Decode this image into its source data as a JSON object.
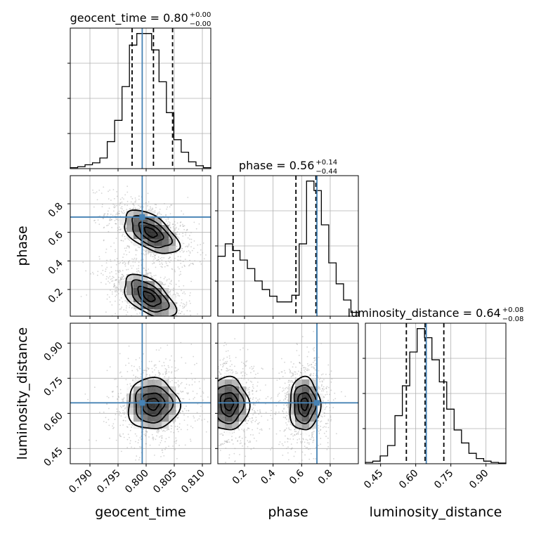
{
  "chart_data": {
    "type": "corner",
    "parameters": [
      {
        "name": "geocent_time",
        "xlabel": "geocent_time",
        "range": [
          0.7865,
          0.8115
        ],
        "ticks": [
          0.79,
          0.795,
          0.8,
          0.805,
          0.81
        ],
        "tick_labels": [
          "0.790",
          "0.795",
          "0.800",
          "0.805",
          "0.810"
        ],
        "title_main": "geocent_time = 0.80",
        "title_plus": "+0.00",
        "title_minus": "−0.00",
        "median": 0.8013,
        "q_lower": 0.7975,
        "q_upper": 0.8047,
        "truth": 0.7993,
        "hist": [
          1,
          2,
          4,
          6,
          11,
          28,
          50,
          85,
          128,
          140,
          140,
          123,
          90,
          58,
          30,
          17,
          7,
          3,
          1
        ]
      },
      {
        "name": "phase",
        "xlabel": "phase",
        "ylabel": "phase",
        "range": [
          0.013,
          0.997
        ],
        "ticks": [
          0.2,
          0.4,
          0.6,
          0.8
        ],
        "tick_labels": [
          "0.2",
          "0.4",
          "0.6",
          "0.8"
        ],
        "title_main": "phase = 0.56",
        "title_plus": "+0.14",
        "title_minus": "−0.44",
        "median": 0.56,
        "q_lower": 0.12,
        "q_upper": 0.7,
        "truth": 0.707,
        "hist": [
          63,
          76,
          69,
          59,
          50,
          37,
          28,
          21,
          15,
          15,
          22,
          76,
          142,
          132,
          96,
          56,
          34,
          17,
          4
        ]
      },
      {
        "name": "luminosity_distance",
        "xlabel": "luminosity_distance",
        "ylabel": "luminosity_distance",
        "range": [
          0.385,
          0.985
        ],
        "ticks": [
          0.45,
          0.6,
          0.75,
          0.9
        ],
        "tick_labels": [
          "0.45",
          "0.60",
          "0.75",
          "0.90"
        ],
        "title_main": "luminosity_distance = 0.64",
        "title_plus": "+0.08",
        "title_minus": "−0.08",
        "median": 0.64,
        "q_lower": 0.56,
        "q_upper": 0.72,
        "truth": 0.645,
        "hist": [
          1,
          2,
          6,
          14,
          37,
          60,
          86,
          104,
          97,
          80,
          63,
          42,
          26,
          16,
          8,
          4,
          2,
          1,
          0.5
        ]
      }
    ],
    "truths": {
      "geocent_time": 0.7993,
      "phase": 0.707,
      "luminosity_distance": 0.645
    },
    "pair_modes": {
      "geocent_time_phase": [
        {
          "x": 0.8008,
          "y": 0.6,
          "sx": 0.0032,
          "sy": 0.1,
          "rho": -0.55
        },
        {
          "x": 0.8005,
          "y": 0.15,
          "sx": 0.003,
          "sy": 0.1,
          "rho": -0.55
        }
      ],
      "geocent_time_luminosity_distance": [
        {
          "x": 0.8012,
          "y": 0.64,
          "sx": 0.003,
          "sy": 0.072,
          "rho": 0.0
        }
      ],
      "phase_luminosity_distance": [
        {
          "x": 0.09,
          "y": 0.64,
          "sx": 0.09,
          "sy": 0.075,
          "rho": 0.0
        },
        {
          "x": 0.62,
          "y": 0.64,
          "sx": 0.07,
          "sy": 0.075,
          "rho": 0.0
        }
      ]
    },
    "grid": true
  }
}
